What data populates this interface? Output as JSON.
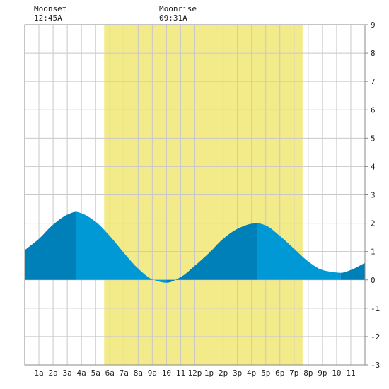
{
  "chart_data": {
    "type": "area",
    "xlim": [
      0,
      24
    ],
    "ylim": [
      -3,
      9
    ],
    "yticks": [
      -3,
      -2,
      -1,
      0,
      1,
      2,
      3,
      4,
      5,
      6,
      7,
      8,
      9
    ],
    "x_tick_labels": [
      "1a",
      "2a",
      "3a",
      "4a",
      "5a",
      "6a",
      "7a",
      "8a",
      "9a",
      "10",
      "11",
      "12p",
      "1p",
      "2p",
      "3p",
      "4p",
      "5p",
      "6p",
      "7p",
      "8p",
      "9p",
      "10",
      "11"
    ],
    "daylight_hours": [
      5.6,
      19.6
    ],
    "grid": true,
    "moon_events": [
      {
        "label": "Moonset",
        "time": "12:45A"
      },
      {
        "label": "Moonrise",
        "time": "09:31A"
      }
    ],
    "tide_extremes": [
      {
        "hour": 3.6,
        "height": 2.4,
        "type": "high"
      },
      {
        "hour": 10.0,
        "height": -0.1,
        "type": "low"
      },
      {
        "hour": 16.4,
        "height": 2.0,
        "type": "high"
      },
      {
        "hour": 22.3,
        "height": 0.25,
        "type": "low"
      }
    ],
    "series": [
      {
        "x": [
          0,
          1,
          2,
          3,
          3.6,
          4,
          5,
          6,
          7,
          8,
          9,
          10,
          11,
          12,
          13,
          14,
          15,
          16,
          16.4,
          17,
          18,
          19,
          20,
          21,
          22,
          22.3,
          23,
          24
        ],
        "values": [
          1.05,
          1.45,
          1.95,
          2.3,
          2.4,
          2.35,
          2.05,
          1.55,
          0.95,
          0.4,
          0.02,
          -0.1,
          0.1,
          0.5,
          0.95,
          1.45,
          1.8,
          1.98,
          2.0,
          1.92,
          1.55,
          1.1,
          0.65,
          0.35,
          0.26,
          0.25,
          0.35,
          0.6
        ]
      }
    ],
    "colors": {
      "daylight": "#f3eb8a",
      "tide_light": "#0099d6",
      "tide_dark": "#0080b8",
      "grid": "#c8c8c8",
      "text": "#222222"
    }
  }
}
